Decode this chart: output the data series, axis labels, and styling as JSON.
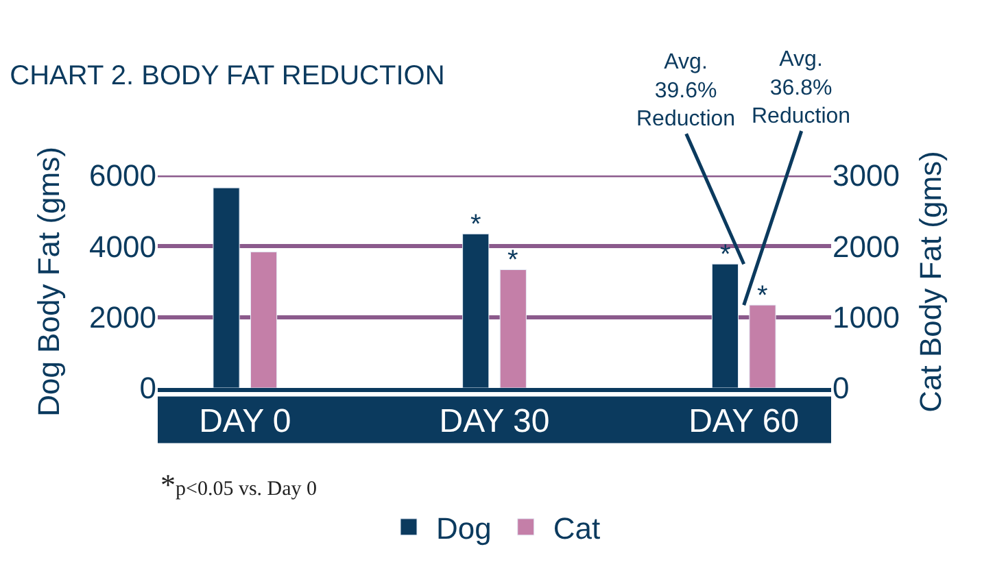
{
  "chart_data": {
    "type": "bar",
    "title": "CHART 2. BODY FAT REDUCTION",
    "categories": [
      "DAY 0",
      "DAY 30",
      "DAY 60"
    ],
    "series": [
      {
        "name": "Dog",
        "color": "#0b3a5e",
        "values": [
          5650,
          4350,
          3500
        ]
      },
      {
        "name": "Cat",
        "color": "#c47fa8",
        "values": [
          1920,
          1670,
          1170
        ],
        "axis": "y2"
      }
    ],
    "ylabel": "Dog Body Fat (gms)",
    "y2label": "Cat Body Fat (gms)",
    "ylim": [
      0,
      6000
    ],
    "yticks": [
      0,
      2000,
      4000,
      6000
    ],
    "y2lim": [
      0,
      3000
    ],
    "y2ticks": [
      0,
      1000,
      2000,
      3000
    ],
    "grid": "y",
    "legend": "bottom",
    "annotations": [
      {
        "text": "*",
        "x": "DAY 30",
        "y": 4350
      },
      {
        "text": "*",
        "x": "DAY 30",
        "y": 1670
      },
      {
        "text": "*",
        "x": "DAY 60",
        "y": 3500
      },
      {
        "text": "*",
        "x": "DAY 60",
        "y": 1170
      },
      {
        "text": "Avg.\n39.6%\nReduction",
        "x": "DAY 60",
        "y": 3500
      },
      {
        "text": "Avg.\n36.8%\nReduction",
        "x": "DAY 60",
        "y": 2340
      },
      "*p<0.05 vs. Day 0"
    ]
  }
}
